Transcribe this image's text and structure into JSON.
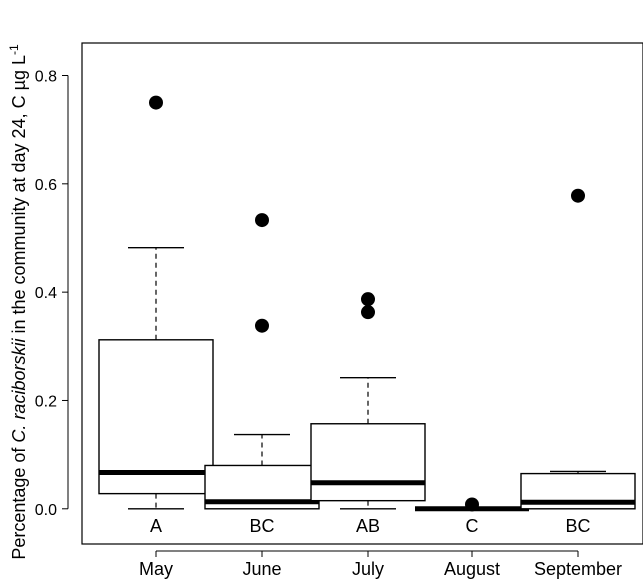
{
  "chart_data": {
    "type": "box",
    "ylabel_prefix": "Percentage of ",
    "ylabel_italic": "C. raciborskii",
    "ylabel_suffix": " in the community at day 24, C µg L",
    "ylabel_sup": "-1",
    "ylim": [
      -0.065,
      0.86
    ],
    "yticks": [
      0.0,
      0.2,
      0.4,
      0.6,
      0.8
    ],
    "ytick_labels": [
      "0.0",
      "0.2",
      "0.4",
      "0.6",
      "0.8"
    ],
    "categories": [
      "May",
      "June",
      "July",
      "August",
      "September"
    ],
    "boxes": [
      {
        "category": "May",
        "min": 0.0,
        "q1": 0.028,
        "median": 0.067,
        "q3": 0.312,
        "max": 0.482,
        "outliers": [
          0.75
        ],
        "group": "A"
      },
      {
        "category": "June",
        "min": 0.0,
        "q1": 0.0,
        "median": 0.013,
        "q3": 0.08,
        "max": 0.137,
        "outliers": [
          0.338,
          0.533
        ],
        "group": "BC"
      },
      {
        "category": "July",
        "min": 0.0,
        "q1": 0.015,
        "median": 0.048,
        "q3": 0.157,
        "max": 0.242,
        "outliers": [
          0.363,
          0.387
        ],
        "group": "AB"
      },
      {
        "category": "August",
        "min": 0.0,
        "q1": 0.0,
        "median": 0.0,
        "q3": 0.0,
        "max": 0.0,
        "outliers": [
          0.008
        ],
        "group": "C"
      },
      {
        "category": "September",
        "min": 0.0,
        "q1": 0.0,
        "median": 0.012,
        "q3": 0.065,
        "max": 0.069,
        "outliers": [
          0.578
        ],
        "group": "BC"
      }
    ]
  }
}
